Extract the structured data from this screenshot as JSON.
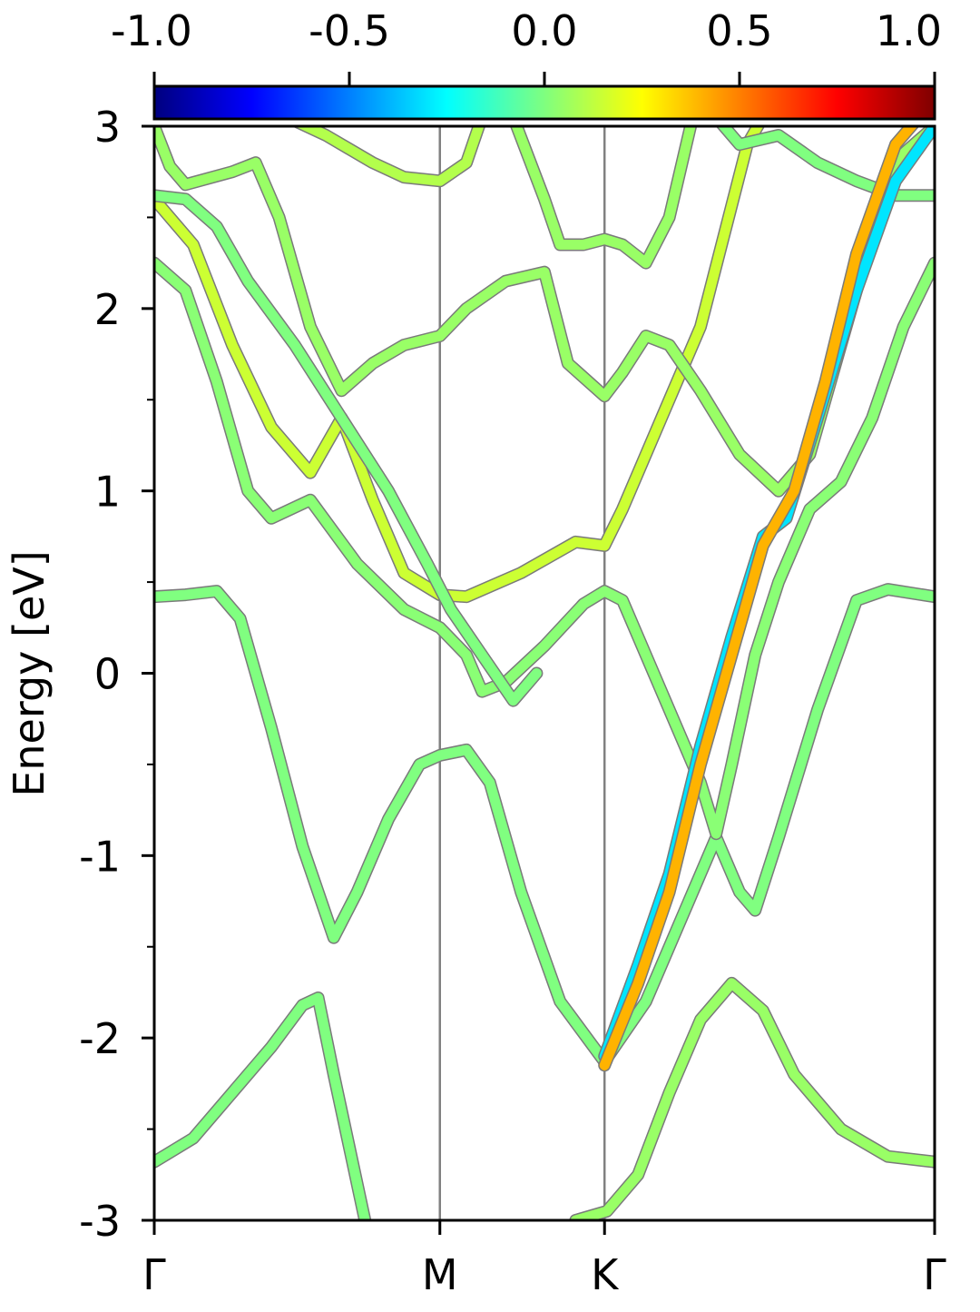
{
  "chart_data": {
    "type": "line",
    "title": "",
    "xlabel": "",
    "ylabel": "Energy [eV]",
    "ylim": [
      -3,
      3
    ],
    "xlim": [
      0,
      1
    ],
    "yticks": [
      {
        "value": 3,
        "label": "3"
      },
      {
        "value": 2,
        "label": "2"
      },
      {
        "value": 1,
        "label": "1"
      },
      {
        "value": 0,
        "label": "0"
      },
      {
        "value": -1,
        "label": "-1"
      },
      {
        "value": -2,
        "label": "-2"
      },
      {
        "value": -3,
        "label": "-3"
      }
    ],
    "kpoints": [
      {
        "label": "Γ",
        "position": 0.0
      },
      {
        "label": "M",
        "position": 0.366
      },
      {
        "label": "K",
        "position": 0.577
      },
      {
        "label": "Γ",
        "position": 1.0
      }
    ],
    "colorbar": {
      "colormap": "jet",
      "range": [
        -1.0,
        1.0
      ],
      "ticks": [
        {
          "value": -1.0,
          "label": "-1.0"
        },
        {
          "value": -0.5,
          "label": "-0.5"
        },
        {
          "value": 0.0,
          "label": "0.0"
        },
        {
          "value": 0.5,
          "label": "0.5"
        },
        {
          "value": 1.0,
          "label": "1.0"
        }
      ]
    },
    "bands": [
      {
        "points": [
          [
            0,
            -2.68
          ],
          [
            0.05,
            -2.55
          ],
          [
            0.1,
            -2.3
          ],
          [
            0.15,
            -2.05
          ],
          [
            0.19,
            -1.82
          ],
          [
            0.21,
            -1.78
          ],
          [
            0.23,
            -2.2
          ],
          [
            0.26,
            -2.8
          ],
          [
            0.27,
            -3.0
          ]
        ],
        "projection": 0.0
      },
      {
        "points": [
          [
            0.54,
            -3.0
          ],
          [
            0.58,
            -2.95
          ],
          [
            0.62,
            -2.75
          ],
          [
            0.66,
            -2.3
          ],
          [
            0.7,
            -1.9
          ],
          [
            0.74,
            -1.7
          ],
          [
            0.78,
            -1.85
          ],
          [
            0.82,
            -2.2
          ],
          [
            0.88,
            -2.5
          ],
          [
            0.94,
            -2.65
          ],
          [
            1.0,
            -2.68
          ]
        ],
        "projection": 0.05
      },
      {
        "points": [
          [
            0,
            0.42
          ],
          [
            0.04,
            0.43
          ],
          [
            0.08,
            0.45
          ],
          [
            0.11,
            0.3
          ],
          [
            0.15,
            -0.3
          ],
          [
            0.19,
            -0.95
          ],
          [
            0.23,
            -1.45
          ],
          [
            0.26,
            -1.2
          ],
          [
            0.3,
            -0.8
          ],
          [
            0.34,
            -0.5
          ],
          [
            0.366,
            -0.45
          ],
          [
            0.4,
            -0.42
          ],
          [
            0.43,
            -0.6
          ],
          [
            0.47,
            -1.2
          ],
          [
            0.52,
            -1.8
          ],
          [
            0.577,
            -2.13
          ],
          [
            0.63,
            -1.8
          ],
          [
            0.68,
            -1.3
          ],
          [
            0.72,
            -0.9
          ],
          [
            0.75,
            -1.2
          ],
          [
            0.77,
            -1.3
          ],
          [
            0.8,
            -0.9
          ],
          [
            0.85,
            -0.2
          ],
          [
            0.9,
            0.4
          ],
          [
            0.94,
            0.46
          ],
          [
            1.0,
            0.42
          ]
        ],
        "projection": 0.0
      },
      {
        "points": [
          [
            0,
            2.25
          ],
          [
            0.04,
            2.1
          ],
          [
            0.08,
            1.6
          ],
          [
            0.12,
            1.0
          ],
          [
            0.15,
            0.85
          ],
          [
            0.2,
            0.95
          ],
          [
            0.26,
            0.6
          ],
          [
            0.32,
            0.35
          ],
          [
            0.366,
            0.25
          ],
          [
            0.4,
            0.1
          ],
          [
            0.42,
            -0.1
          ],
          [
            0.45,
            -0.05
          ],
          [
            0.5,
            0.15
          ],
          [
            0.55,
            0.38
          ],
          [
            0.577,
            0.45
          ],
          [
            0.6,
            0.4
          ],
          [
            0.65,
            -0.1
          ],
          [
            0.7,
            -0.6
          ],
          [
            0.72,
            -0.88
          ],
          [
            0.74,
            -0.5
          ],
          [
            0.77,
            0.1
          ],
          [
            0.8,
            0.5
          ],
          [
            0.84,
            0.9
          ],
          [
            0.88,
            1.05
          ],
          [
            0.92,
            1.4
          ],
          [
            0.96,
            1.9
          ],
          [
            1.0,
            2.25
          ]
        ],
        "projection": 0.02
      },
      {
        "points": [
          [
            0,
            2.6
          ],
          [
            0.05,
            2.35
          ],
          [
            0.1,
            1.8
          ],
          [
            0.15,
            1.35
          ],
          [
            0.2,
            1.1
          ],
          [
            0.24,
            1.4
          ],
          [
            0.28,
            0.95
          ],
          [
            0.32,
            0.55
          ],
          [
            0.366,
            0.43
          ],
          [
            0.4,
            0.42
          ],
          [
            0.47,
            0.55
          ],
          [
            0.54,
            0.72
          ],
          [
            0.577,
            0.7
          ],
          [
            0.6,
            0.9
          ],
          [
            0.65,
            1.4
          ],
          [
            0.7,
            1.9
          ],
          [
            0.73,
            2.4
          ],
          [
            0.76,
            2.9
          ],
          [
            0.78,
            3.05
          ]
        ],
        "projection": 0.15
      },
      {
        "points": [
          [
            0,
            3.0
          ],
          [
            0.02,
            2.78
          ],
          [
            0.04,
            2.68
          ],
          [
            0.1,
            2.75
          ],
          [
            0.13,
            2.8
          ],
          [
            0.16,
            2.5
          ],
          [
            0.2,
            1.9
          ],
          [
            0.24,
            1.55
          ],
          [
            0.28,
            1.7
          ],
          [
            0.32,
            1.8
          ],
          [
            0.366,
            1.85
          ],
          [
            0.4,
            2.0
          ],
          [
            0.45,
            2.15
          ],
          [
            0.5,
            2.2
          ],
          [
            0.53,
            1.7
          ],
          [
            0.577,
            1.52
          ],
          [
            0.6,
            1.65
          ],
          [
            0.63,
            1.85
          ],
          [
            0.66,
            1.8
          ],
          [
            0.7,
            1.55
          ],
          [
            0.75,
            1.2
          ],
          [
            0.8,
            1.0
          ],
          [
            0.84,
            1.2
          ],
          [
            0.88,
            1.8
          ],
          [
            0.92,
            2.4
          ],
          [
            0.96,
            2.85
          ],
          [
            1.0,
            3.0
          ]
        ],
        "projection": 0.05
      },
      {
        "points": [
          [
            0.72,
            3.05
          ],
          [
            0.75,
            2.9
          ],
          [
            0.8,
            2.95
          ],
          [
            0.85,
            2.8
          ],
          [
            0.9,
            2.7
          ],
          [
            0.95,
            2.62
          ],
          [
            1.0,
            2.62
          ]
        ],
        "projection": 0.0
      },
      {
        "points": [
          [
            0,
            2.62
          ],
          [
            0.04,
            2.6
          ],
          [
            0.08,
            2.45
          ],
          [
            0.12,
            2.15
          ],
          [
            0.18,
            1.8
          ],
          [
            0.24,
            1.4
          ],
          [
            0.3,
            1.0
          ],
          [
            0.35,
            0.6
          ],
          [
            0.38,
            0.35
          ],
          [
            0.42,
            0.1
          ],
          [
            0.46,
            -0.15
          ],
          [
            0.49,
            0.0
          ]
        ],
        "projection": 0.0
      },
      {
        "points": [
          [
            0.17,
            3.05
          ],
          [
            0.22,
            2.95
          ],
          [
            0.28,
            2.8
          ],
          [
            0.32,
            2.72
          ],
          [
            0.366,
            2.7
          ],
          [
            0.4,
            2.8
          ],
          [
            0.42,
            3.05
          ]
        ],
        "projection": 0.1
      },
      {
        "points": [
          [
            0.46,
            3.05
          ],
          [
            0.5,
            2.6
          ],
          [
            0.52,
            2.35
          ],
          [
            0.55,
            2.35
          ],
          [
            0.577,
            2.38
          ],
          [
            0.6,
            2.35
          ],
          [
            0.63,
            2.25
          ],
          [
            0.66,
            2.5
          ],
          [
            0.69,
            3.05
          ]
        ],
        "projection": 0.05
      },
      {
        "points": [
          [
            0.577,
            -2.1
          ],
          [
            0.62,
            -1.6
          ],
          [
            0.66,
            -1.1
          ],
          [
            0.7,
            -0.4
          ],
          [
            0.74,
            0.2
          ],
          [
            0.78,
            0.75
          ],
          [
            0.81,
            0.85
          ],
          [
            0.85,
            1.4
          ],
          [
            0.9,
            2.1
          ],
          [
            0.95,
            2.7
          ],
          [
            1.0,
            3.0
          ]
        ],
        "projection": -0.3
      },
      {
        "points": [
          [
            0.577,
            -2.15
          ],
          [
            0.62,
            -1.7
          ],
          [
            0.66,
            -1.2
          ],
          [
            0.7,
            -0.5
          ],
          [
            0.74,
            0.1
          ],
          [
            0.78,
            0.7
          ],
          [
            0.82,
            1.0
          ],
          [
            0.86,
            1.6
          ],
          [
            0.9,
            2.3
          ],
          [
            0.95,
            2.9
          ],
          [
            0.98,
            3.05
          ]
        ],
        "projection": 0.4
      }
    ]
  }
}
